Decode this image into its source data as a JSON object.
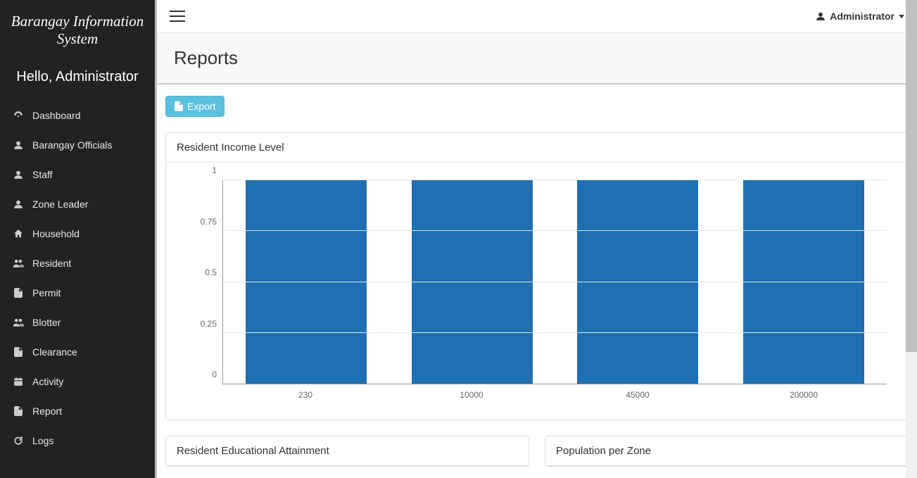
{
  "brand": "Barangay Information System",
  "greeting": "Hello, Administrator",
  "sidebar": {
    "items": [
      {
        "label": "Dashboard",
        "icon": "dashboard"
      },
      {
        "label": "Barangay Officials",
        "icon": "user"
      },
      {
        "label": "Staff",
        "icon": "user"
      },
      {
        "label": "Zone Leader",
        "icon": "user"
      },
      {
        "label": "Household",
        "icon": "home"
      },
      {
        "label": "Resident",
        "icon": "users"
      },
      {
        "label": "Permit",
        "icon": "file"
      },
      {
        "label": "Blotter",
        "icon": "users"
      },
      {
        "label": "Clearance",
        "icon": "file"
      },
      {
        "label": "Activity",
        "icon": "calendar"
      },
      {
        "label": "Report",
        "icon": "file"
      },
      {
        "label": "Logs",
        "icon": "refresh"
      }
    ]
  },
  "topbar": {
    "user_label": "Administrator"
  },
  "page": {
    "title": "Reports",
    "export_label": "Export"
  },
  "chart": {
    "title": "Resident Income Level",
    "type": "bar",
    "categories": [
      "230",
      "10000",
      "45000",
      "200000"
    ],
    "values": [
      1,
      1,
      1,
      1
    ],
    "bar_color": "#1f6fb2",
    "ylim": [
      0,
      1
    ],
    "ytick_step": 0.25,
    "yticks": [
      "0",
      "0.25",
      "0.5",
      "0.75",
      "1"
    ],
    "grid_color": "#e5e5e5",
    "axis_color": "#999999",
    "background_color": "#ffffff",
    "label_color": "#666666",
    "label_fontsize": 12,
    "bar_width": 0.73
  },
  "secondary_panels": [
    {
      "title": "Resident Educational Attainment"
    },
    {
      "title": "Population per Zone"
    }
  ],
  "colors": {
    "sidebar_bg": "#222222",
    "sidebar_text": "#e8e8e8",
    "accent_info": "#5bc0de",
    "panel_border": "#dddddd"
  }
}
